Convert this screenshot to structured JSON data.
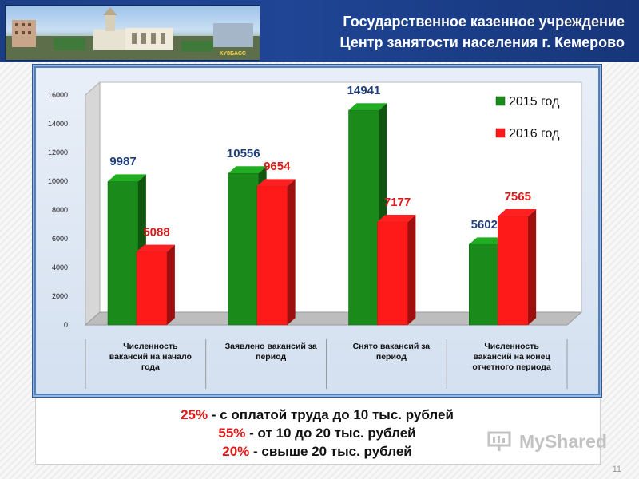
{
  "header": {
    "title_line1": "Государственное казенное учреждение",
    "title_line2": "Центр занятости населения г. Кемерово",
    "photo_caption": "КУЗБАСС"
  },
  "chart_data": {
    "type": "bar",
    "categories": [
      [
        "Численность",
        "вакансий на начало",
        "года"
      ],
      [
        "Заявлено вакансий за",
        "период"
      ],
      [
        "Снято вакансий за",
        "период"
      ],
      [
        "Численность",
        "вакансий на конец",
        "отчетного периода"
      ]
    ],
    "series": [
      {
        "name": "2015 год",
        "color": "#1a8a1a",
        "values": [
          9987,
          10556,
          14941,
          5602
        ]
      },
      {
        "name": "2016 год",
        "color": "#ff1a1a",
        "values": [
          5088,
          9654,
          7177,
          7565
        ]
      }
    ],
    "ylim": [
      0,
      16000
    ],
    "yticks": [
      0,
      2000,
      4000,
      6000,
      8000,
      10000,
      12000,
      14000,
      16000
    ],
    "data_labels": [
      [
        "9987",
        "5088"
      ],
      [
        "10556",
        "9654"
      ],
      [
        "14941",
        "7177"
      ],
      [
        "5602",
        "7565"
      ]
    ],
    "label_colors": {
      "2015 год": "#1f3d7a",
      "2016 год": "#e01818"
    },
    "legend": "top-right",
    "grid": false
  },
  "stats": [
    {
      "pct": "25%",
      "text": " - с  оплатой труда до 10 тыс. рублей"
    },
    {
      "pct": "55%",
      "text": " - от 10 до 20 тыс. рублей"
    },
    {
      "pct": "20%",
      "text": " - свыше 20 тыс. рублей"
    }
  ],
  "watermark": "MyShared",
  "page_number": "11"
}
